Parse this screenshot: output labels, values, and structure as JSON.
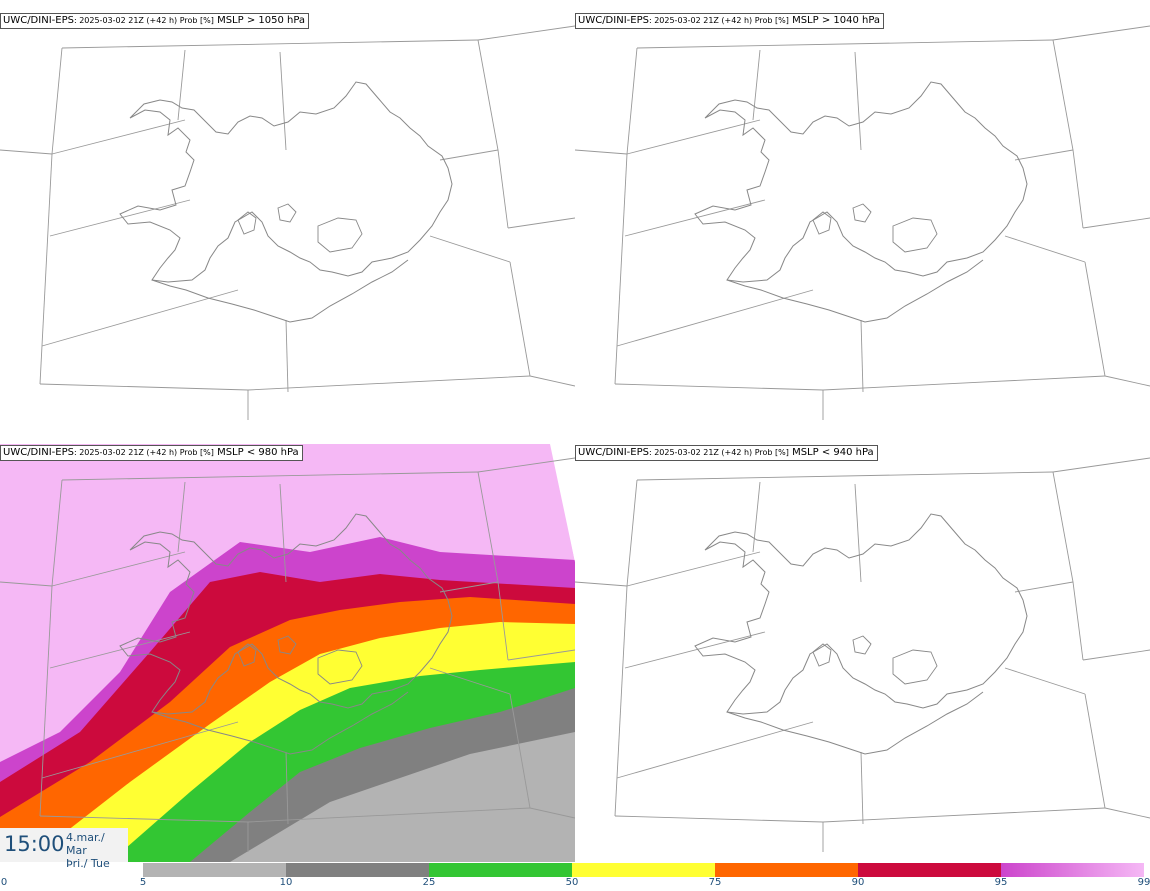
{
  "panels": [
    {
      "model": "UWC/DINI-EPS",
      "meta": ": 2025-03-02 21Z (+42 h) Prob [%]",
      "param": "MSLP > 1050 hPa",
      "filled": false
    },
    {
      "model": "UWC/DINI-EPS",
      "meta": ": 2025-03-02 21Z (+42 h) Prob [%]",
      "param": "MSLP > 1040 hPa",
      "filled": false
    },
    {
      "model": "UWC/DINI-EPS",
      "meta": ": 2025-03-02 21Z (+42 h) Prob [%]",
      "param": "MSLP < 980 hPa",
      "filled": true
    },
    {
      "model": "UWC/DINI-EPS",
      "meta": ": 2025-03-02 21Z (+42 h) Prob [%]",
      "param": "MSLP < 940 hPa",
      "filled": false
    }
  ],
  "valid_time": {
    "time": "15:00",
    "date_line1": "4.mar./ Mar",
    "date_line2": "Þri./ Tue"
  },
  "colorbar": {
    "labels": [
      "0",
      "5",
      "10",
      "25",
      "50",
      "75",
      "90",
      "95",
      "99"
    ],
    "colors": [
      "#ffffff",
      "#b3b3b3",
      "#808080",
      "#33c633",
      "#ffff33",
      "#ff6600",
      "#cc0a3d",
      "#cc44cc",
      "#f5b8f5"
    ],
    "gradient_last": true
  },
  "colors": {
    "outline": "#888888",
    "grid": "#999999",
    "text_accent": "#1f4f7a"
  }
}
